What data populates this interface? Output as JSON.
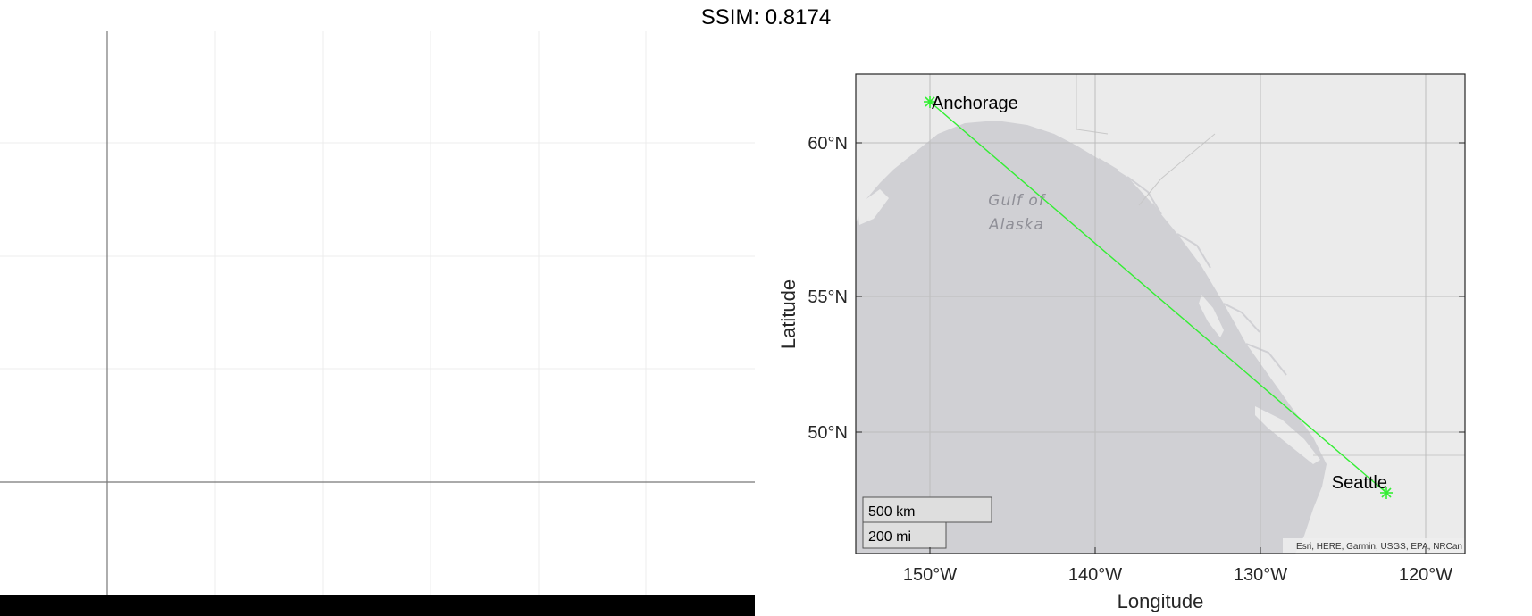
{
  "title": "SSIM: 0.8174",
  "map": {
    "xlabel": "Longitude",
    "ylabel": "Latitude",
    "x_ticks": [
      "150°W",
      "140°W",
      "130°W",
      "120°W"
    ],
    "y_ticks": [
      "60°N",
      "55°N",
      "50°N"
    ],
    "water_label_line1": "Gulf of",
    "water_label_line2": "Alaska",
    "cities": [
      {
        "name": "Anchorage",
        "lat": 61.2,
        "lon": -149.9
      },
      {
        "name": "Seattle",
        "lat": 47.6,
        "lon": -122.3
      }
    ],
    "route_color": "#33ee33",
    "scalebar_km": "500 km",
    "scalebar_mi": "200 mi",
    "attribution": "Esri, HERE, Garmin, USGS, EPA, NRCan"
  }
}
